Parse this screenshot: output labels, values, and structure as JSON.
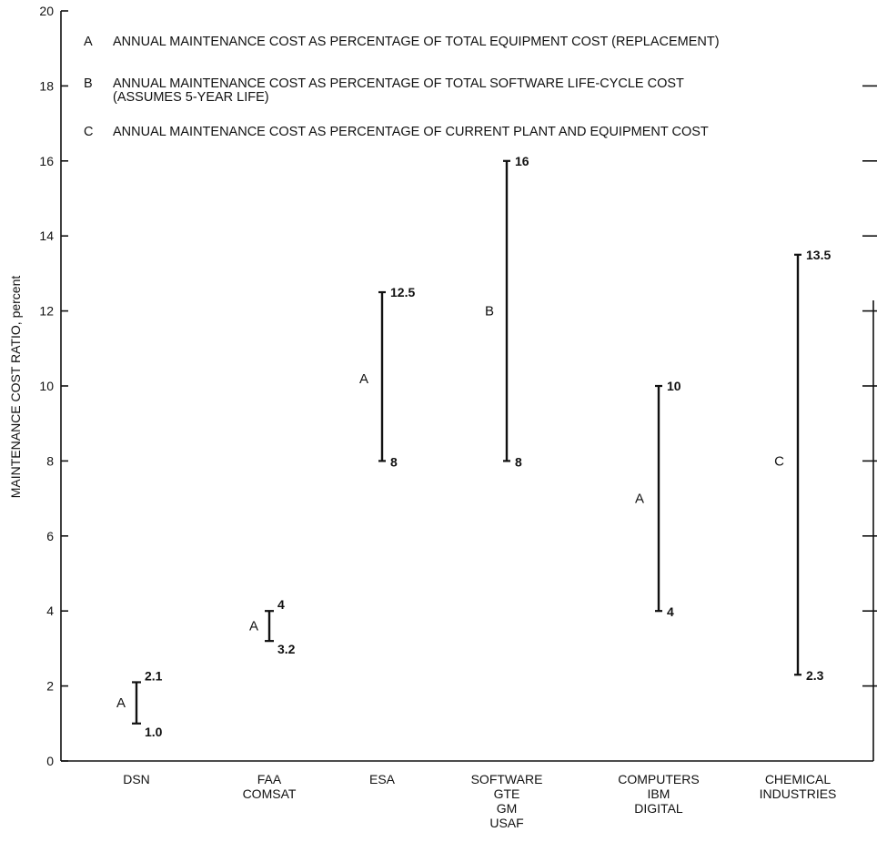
{
  "chart_data": {
    "type": "range",
    "ylabel": "MAINTENANCE COST RATIO, percent",
    "xlabel": "",
    "ylim": [
      0,
      20
    ],
    "yticks": [
      "0",
      "2",
      "4",
      "6",
      "8",
      "10",
      "12",
      "14",
      "16",
      "18",
      "20"
    ],
    "grid": false,
    "legend_position": "top",
    "legend": [
      {
        "key": "A",
        "lines": [
          "ANNUAL MAINTENANCE COST AS PERCENTAGE OF TOTAL EQUIPMENT COST (REPLACEMENT)"
        ]
      },
      {
        "key": "B",
        "lines": [
          "ANNUAL MAINTENANCE COST AS PERCENTAGE OF TOTAL SOFTWARE LIFE-CYCLE COST",
          "(ASSUMES 5-YEAR LIFE)"
        ]
      },
      {
        "key": "C",
        "lines": [
          "ANNUAL MAINTENANCE COST AS PERCENTAGE OF CURRENT PLANT AND EQUIPMENT COST"
        ]
      }
    ],
    "categories": [
      {
        "lines": [
          "DSN"
        ],
        "basis": "A",
        "low": 1.0,
        "high": 2.1,
        "low_label": "1.0",
        "high_label": "2.1"
      },
      {
        "lines": [
          "FAA",
          "COMSAT"
        ],
        "basis": "A",
        "low": 3.2,
        "high": 4,
        "low_label": "3.2",
        "high_label": "4"
      },
      {
        "lines": [
          "ESA"
        ],
        "basis": "A",
        "low": 8,
        "high": 12.5,
        "low_label": "8",
        "high_label": "12.5"
      },
      {
        "lines": [
          "SOFTWARE",
          "GTE",
          "GM",
          "USAF"
        ],
        "basis": "B",
        "low": 8,
        "high": 16,
        "low_label": "8",
        "high_label": "16"
      },
      {
        "lines": [
          "COMPUTERS",
          "IBM",
          "DIGITAL"
        ],
        "basis": "A",
        "low": 4,
        "high": 10,
        "low_label": "4",
        "high_label": "10"
      },
      {
        "lines": [
          "CHEMICAL",
          "INDUSTRIES"
        ],
        "basis": "C",
        "low": 2.3,
        "high": 13.5,
        "low_label": "2.3",
        "high_label": "13.5"
      }
    ]
  }
}
